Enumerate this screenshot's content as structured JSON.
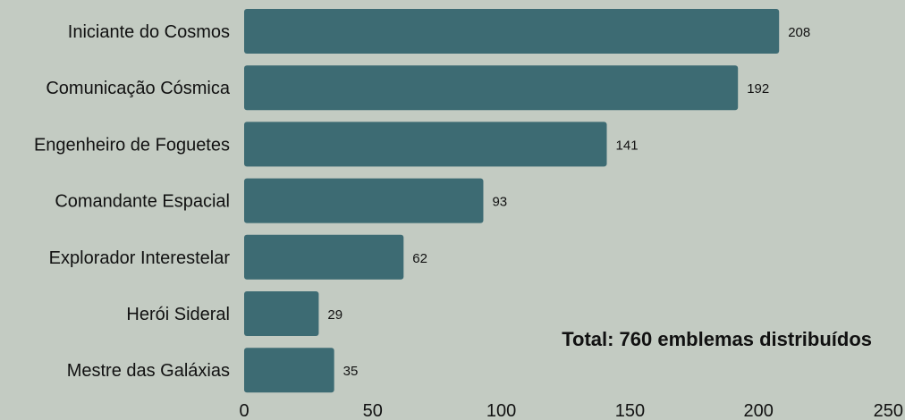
{
  "chart_data": {
    "type": "bar",
    "orientation": "horizontal",
    "categories": [
      "Iniciante do Cosmos",
      "Comunicação Cósmica",
      "Engenheiro de Foguetes",
      "Comandante Espacial",
      "Explorador Interestelar",
      "Herói Sideral",
      "Mestre das Galáxias"
    ],
    "values": [
      208,
      192,
      141,
      93,
      62,
      29,
      35
    ],
    "value_labels": [
      "208",
      "192",
      "141",
      "93",
      "62",
      "29",
      "35"
    ],
    "xlim": [
      0,
      250
    ],
    "xticks": [
      0,
      50,
      100,
      150,
      200,
      250
    ],
    "xtick_labels": [
      "0",
      "50",
      "100",
      "150",
      "200",
      "250"
    ],
    "title": "",
    "xlabel": "",
    "ylabel": "",
    "grid": false,
    "legend": "none",
    "annotation": "Total: 760 emblemas distribuídos",
    "colors": {
      "background": "#c3cbc2",
      "bar": "#3d6b73",
      "text": "#111111"
    }
  }
}
